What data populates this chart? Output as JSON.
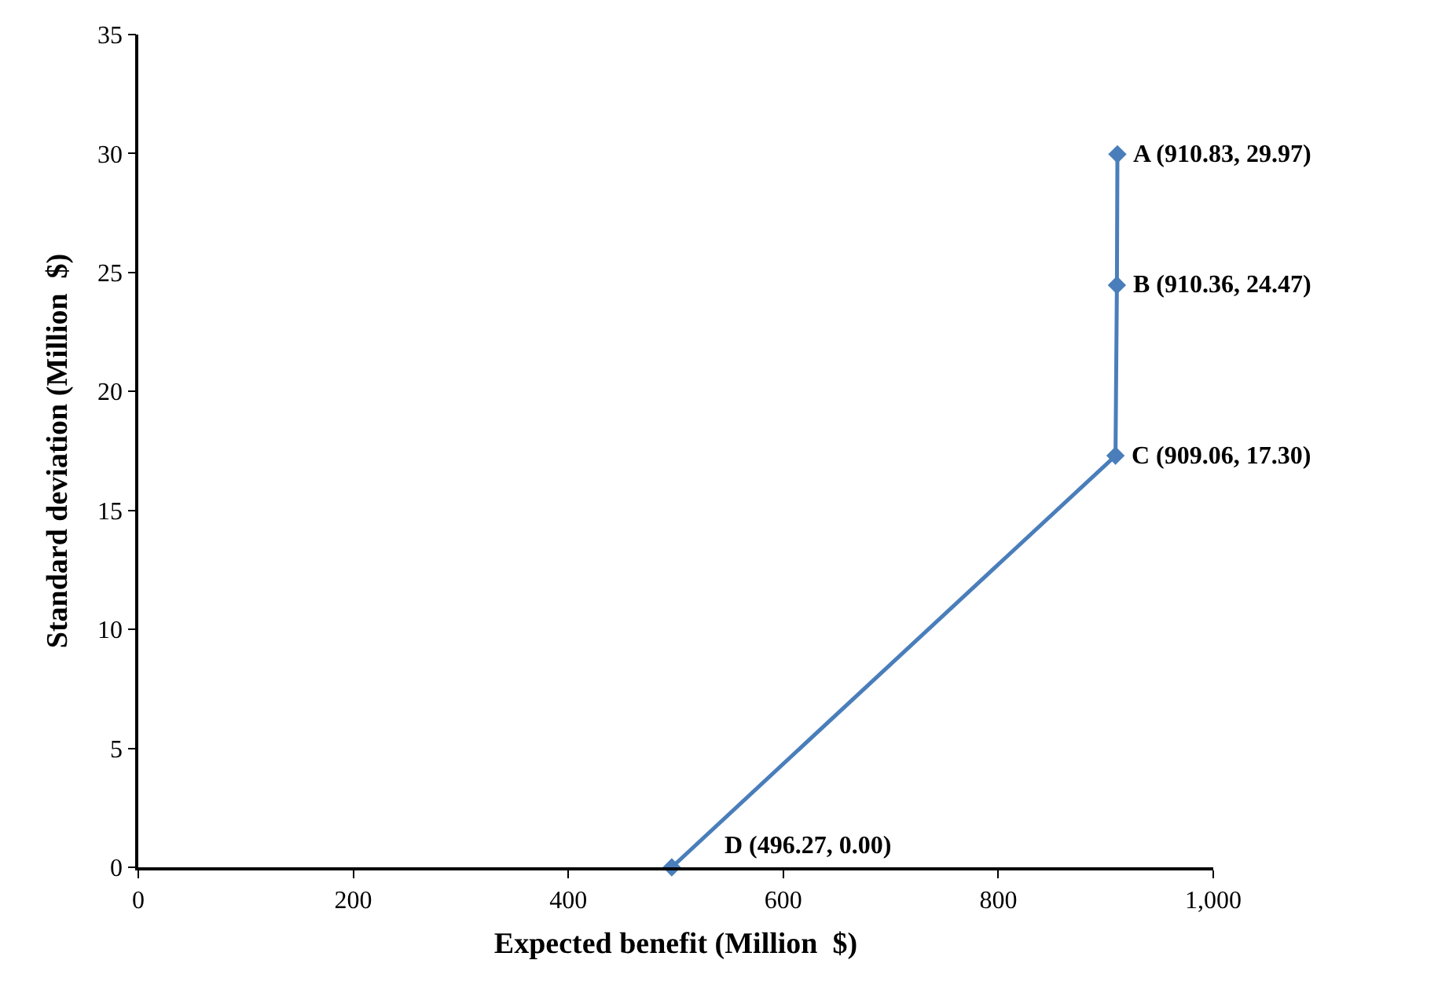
{
  "chart_data": {
    "type": "line",
    "xlabel": "Expected benefit (Million  $)",
    "ylabel": "Standard deviation (Million  $)",
    "series": [
      {
        "color": "#4a7ebb",
        "x": [
          496.27,
          909.06,
          910.36,
          910.83
        ],
        "values": [
          0,
          17.3,
          24.47,
          29.97
        ]
      }
    ],
    "xlim": [
      0,
      1000
    ],
    "xticks": [
      0,
      200,
      400,
      600,
      800,
      {
        "value": 1000,
        "label": "1,000"
      }
    ],
    "ylim": [
      0,
      35
    ],
    "yticks": [
      0,
      5,
      10,
      15,
      20,
      25,
      30,
      35
    ],
    "grid": false,
    "marker": "diamond",
    "line_style": "solid",
    "annotations": [
      {
        "text": "A (910.83, 29.97)",
        "x": 910.83,
        "y": 29.97
      },
      {
        "text": "B (910.36, 24.47)",
        "x": 910.36,
        "y": 24.47
      },
      {
        "text": "C (909.06, 17.30)",
        "x": 909.06,
        "y": 17.3
      },
      {
        "text": "D (496.27, 0.00)",
        "x": 496.27,
        "y": 0
      }
    ]
  }
}
